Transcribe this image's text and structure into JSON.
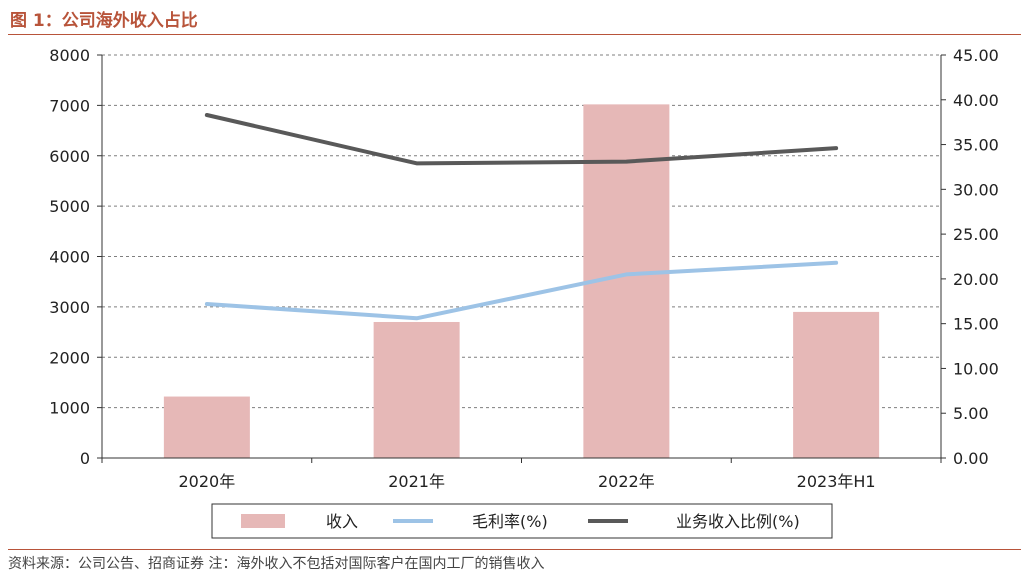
{
  "figure_label": "图 1：公司海外收入占比",
  "source_note": "资料来源：公司公告、招商证券 注：海外收入不包括对国际客户在国内工厂的销售收入",
  "colors": {
    "bar": "#e6b8b7",
    "margin_line": "#9dc3e6",
    "share_line": "#595959",
    "accent": "#b8543a",
    "grid": "#7f7f7f"
  },
  "chart_data": {
    "type": "bar",
    "title": "公司海外收入占比",
    "categories": [
      "2020年",
      "2021年",
      "2022年",
      "2023年H1"
    ],
    "y_left": {
      "ylim": [
        0,
        8000
      ],
      "ticks": [
        "0",
        "1000",
        "2000",
        "3000",
        "4000",
        "5000",
        "6000",
        "7000",
        "8000"
      ]
    },
    "y_right": {
      "ylim": [
        0,
        45
      ],
      "ticks": [
        "0.00",
        "5.00",
        "10.00",
        "15.00",
        "20.00",
        "25.00",
        "30.00",
        "35.00",
        "40.00",
        "45.00"
      ]
    },
    "series": [
      {
        "name": "收入",
        "type": "bar",
        "axis": "left",
        "values": [
          1220,
          2700,
          7020,
          2900
        ]
      },
      {
        "name": "毛利率(%)",
        "type": "line",
        "axis": "right",
        "values": [
          17.2,
          15.6,
          20.5,
          21.8
        ]
      },
      {
        "name": "业务收入比例(%)",
        "type": "line",
        "axis": "right",
        "values": [
          38.3,
          32.9,
          33.1,
          34.6
        ]
      }
    ],
    "grid": "horizontal dashed",
    "legend_position": "bottom"
  }
}
